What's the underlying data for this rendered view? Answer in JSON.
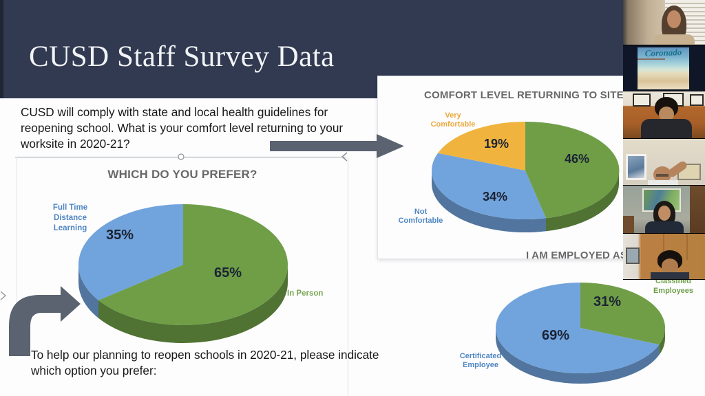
{
  "header": {
    "title": "CUSD Staff Survey Data"
  },
  "intro": {
    "text": "CUSD will comply with state and local health guidelines for reopening school. What is your comfort level returning to your worksite in 2020-21?"
  },
  "footer": {
    "text": "To help our planning to reopen schools in 2020-21, please indicate which option you prefer:"
  },
  "colors": {
    "header_navy": "#323a51",
    "pie_green": "#6f9e47",
    "pie_blue": "#71a3dc",
    "pie_yellow": "#f0b43e",
    "label_blue": "#4f86c2",
    "label_green": "#7aa855",
    "label_orange": "#e9a93d",
    "chart_title_gray": "#686868",
    "arrow_gray": "#5b6270"
  },
  "chart_data": [
    {
      "id": "prefer",
      "type": "pie",
      "title": "WHICH DO YOU PREFER?",
      "style": "3d-pie",
      "legend_position": "none",
      "slices": [
        {
          "label": "In Person",
          "value": 65,
          "pct_label": "65%",
          "color": "#6f9e47",
          "label_color": "#7aa855"
        },
        {
          "label": "Full Time Distance Learning",
          "value": 35,
          "pct_label": "35%",
          "color": "#71a3dc",
          "label_color": "#4f86c2"
        }
      ]
    },
    {
      "id": "comfort",
      "type": "pie",
      "title": "COMFORT LEVEL RETURNING TO SITE",
      "style": "3d-pie",
      "legend_position": "none",
      "slices": [
        {
          "label": "",
          "value": 46,
          "pct_label": "46%",
          "color": "#6f9e47",
          "label_color": "#7aa855"
        },
        {
          "label": "Not Comfortable",
          "value": 34,
          "pct_label": "34%",
          "color": "#71a3dc",
          "label_color": "#4f86c2"
        },
        {
          "label": "Very Comfortable",
          "value": 19,
          "pct_label": "19%",
          "color": "#f0b43e",
          "label_color": "#e9a93d"
        }
      ]
    },
    {
      "id": "employed",
      "type": "pie",
      "title": "I AM EMPLOYED AS",
      "style": "3d-pie",
      "legend_position": "none",
      "slices": [
        {
          "label": "Classified Employees",
          "value": 31,
          "pct_label": "31%",
          "color": "#6f9e47",
          "label_color": "#6f9e47"
        },
        {
          "label": "Certificated Employee",
          "value": 69,
          "pct_label": "69%",
          "color": "#71a3dc",
          "label_color": "#4f86c2"
        }
      ]
    }
  ],
  "video_strip": {
    "tiles": [
      {
        "kind": "participant"
      },
      {
        "kind": "logo",
        "text": "Coronado"
      },
      {
        "kind": "participant"
      },
      {
        "kind": "participant"
      },
      {
        "kind": "participant"
      },
      {
        "kind": "participant"
      }
    ]
  }
}
